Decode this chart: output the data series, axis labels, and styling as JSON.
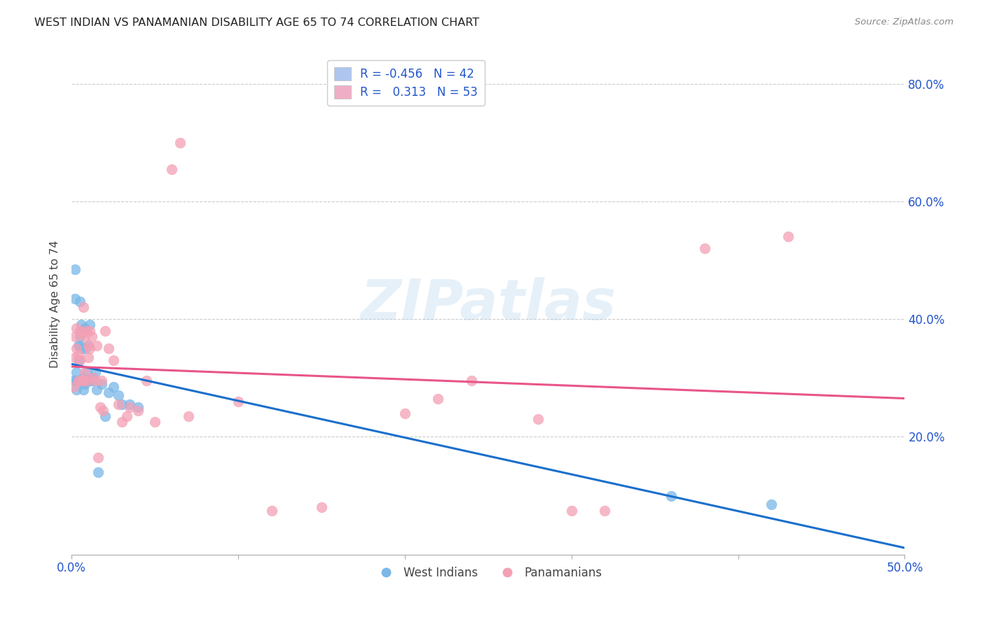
{
  "title": "WEST INDIAN VS PANAMANIAN DISABILITY AGE 65 TO 74 CORRELATION CHART",
  "source": "Source: ZipAtlas.com",
  "ylabel": "Disability Age 65 to 74",
  "xlim": [
    0.0,
    0.5
  ],
  "ylim": [
    0.0,
    0.85
  ],
  "xticks": [
    0.0,
    0.1,
    0.2,
    0.3,
    0.4,
    0.5
  ],
  "xtick_labels": [
    "0.0%",
    "",
    "",
    "",
    "",
    "50.0%"
  ],
  "ytick_labels_right": [
    "20.0%",
    "40.0%",
    "60.0%",
    "80.0%"
  ],
  "ytick_positions": [
    0.2,
    0.4,
    0.6,
    0.8
  ],
  "legend_r_entries": [
    {
      "label_r": "-0.456",
      "label_n": "42",
      "color": "#aec6f0"
    },
    {
      "label_r": "0.313",
      "label_n": "53",
      "color": "#f0aec6"
    }
  ],
  "west_indians_color": "#7ab8e8",
  "panamanian_color": "#f4a0b5",
  "trend_blue": "#1a6fcc",
  "trend_pink": "#e8558a",
  "watermark_text": "ZIPatlas",
  "background_color": "#ffffff",
  "grid_color": "#cccccc",
  "west_indians_x": [
    0.001,
    0.002,
    0.002,
    0.003,
    0.003,
    0.003,
    0.004,
    0.004,
    0.004,
    0.005,
    0.005,
    0.005,
    0.006,
    0.006,
    0.006,
    0.007,
    0.007,
    0.007,
    0.008,
    0.008,
    0.008,
    0.009,
    0.009,
    0.01,
    0.01,
    0.011,
    0.011,
    0.012,
    0.013,
    0.014,
    0.015,
    0.016,
    0.018,
    0.02,
    0.022,
    0.025,
    0.028,
    0.03,
    0.035,
    0.04,
    0.36,
    0.42
  ],
  "west_indians_y": [
    0.295,
    0.485,
    0.435,
    0.31,
    0.295,
    0.28,
    0.355,
    0.33,
    0.295,
    0.43,
    0.37,
    0.355,
    0.39,
    0.35,
    0.38,
    0.295,
    0.3,
    0.28,
    0.385,
    0.35,
    0.29,
    0.31,
    0.295,
    0.355,
    0.295,
    0.39,
    0.295,
    0.295,
    0.3,
    0.31,
    0.28,
    0.14,
    0.29,
    0.235,
    0.275,
    0.285,
    0.27,
    0.255,
    0.255,
    0.25,
    0.1,
    0.085
  ],
  "panamanians_x": [
    0.001,
    0.002,
    0.002,
    0.003,
    0.003,
    0.004,
    0.004,
    0.005,
    0.005,
    0.006,
    0.006,
    0.007,
    0.007,
    0.008,
    0.008,
    0.009,
    0.009,
    0.01,
    0.01,
    0.011,
    0.011,
    0.012,
    0.013,
    0.014,
    0.015,
    0.016,
    0.017,
    0.018,
    0.019,
    0.02,
    0.022,
    0.025,
    0.028,
    0.03,
    0.033,
    0.035,
    0.04,
    0.045,
    0.05,
    0.06,
    0.065,
    0.07,
    0.1,
    0.12,
    0.15,
    0.2,
    0.22,
    0.24,
    0.28,
    0.3,
    0.32,
    0.38,
    0.43
  ],
  "panamanians_y": [
    0.285,
    0.335,
    0.37,
    0.385,
    0.35,
    0.295,
    0.34,
    0.38,
    0.33,
    0.295,
    0.375,
    0.295,
    0.42,
    0.31,
    0.37,
    0.295,
    0.38,
    0.335,
    0.355,
    0.38,
    0.35,
    0.37,
    0.3,
    0.295,
    0.355,
    0.165,
    0.25,
    0.295,
    0.245,
    0.38,
    0.35,
    0.33,
    0.255,
    0.225,
    0.235,
    0.25,
    0.245,
    0.295,
    0.225,
    0.655,
    0.7,
    0.235,
    0.26,
    0.075,
    0.08,
    0.24,
    0.265,
    0.295,
    0.23,
    0.075,
    0.075,
    0.52,
    0.54
  ]
}
